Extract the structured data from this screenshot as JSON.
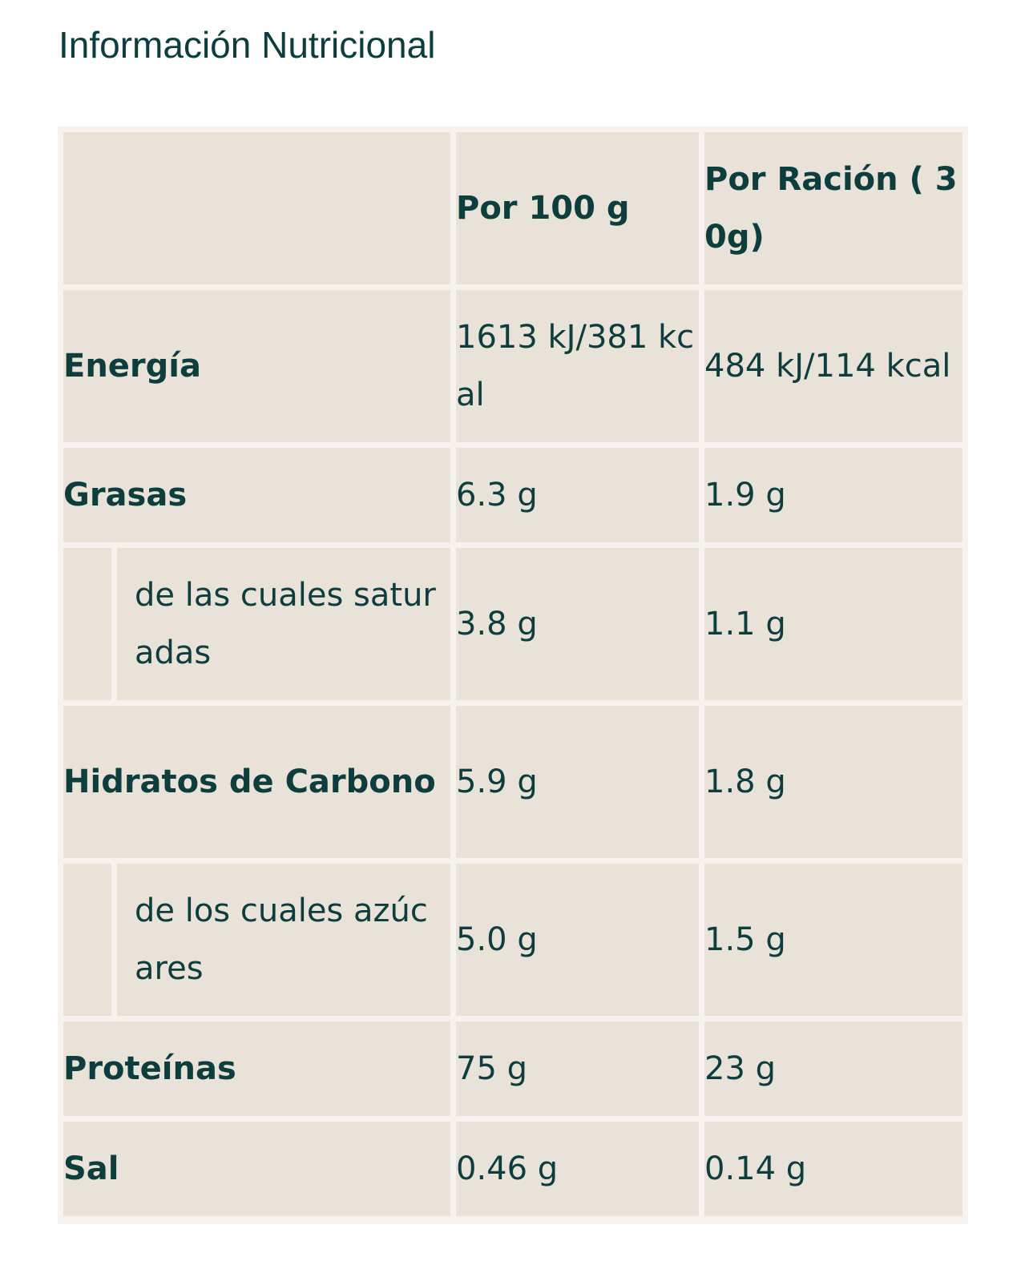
{
  "page": {
    "title": "Información Nutricional"
  },
  "table": {
    "headers": [
      "",
      "Por 100 g",
      "Por Ración ( 30g)"
    ],
    "rows": [
      {
        "label": "Energía",
        "per_100g": "1613 kJ/381 kcal",
        "per_serving": "484 kJ/114 kcal",
        "sub": false
      },
      {
        "label": "Grasas",
        "per_100g": "6.3 g",
        "per_serving": "1.9 g",
        "sub": false
      },
      {
        "label": "de las cuales saturadas",
        "per_100g": "3.8 g",
        "per_serving": "1.1 g",
        "sub": true
      },
      {
        "label": "Hidratos de Carbono",
        "per_100g": "5.9 g",
        "per_serving": "1.8 g",
        "sub": false
      },
      {
        "label": "de los cuales azúcares",
        "per_100g": "5.0 g",
        "per_serving": "1.5 g",
        "sub": true
      },
      {
        "label": "Proteínas",
        "per_100g": "75 g",
        "per_serving": "23 g",
        "sub": false
      },
      {
        "label": "Sal",
        "per_100g": "0.46 g",
        "per_serving": "0.14 g",
        "sub": false
      }
    ]
  },
  "colors": {
    "text": "#0d3d3d",
    "cell_background": "#e8e2d8",
    "grid_background": "#f6f3ee"
  }
}
